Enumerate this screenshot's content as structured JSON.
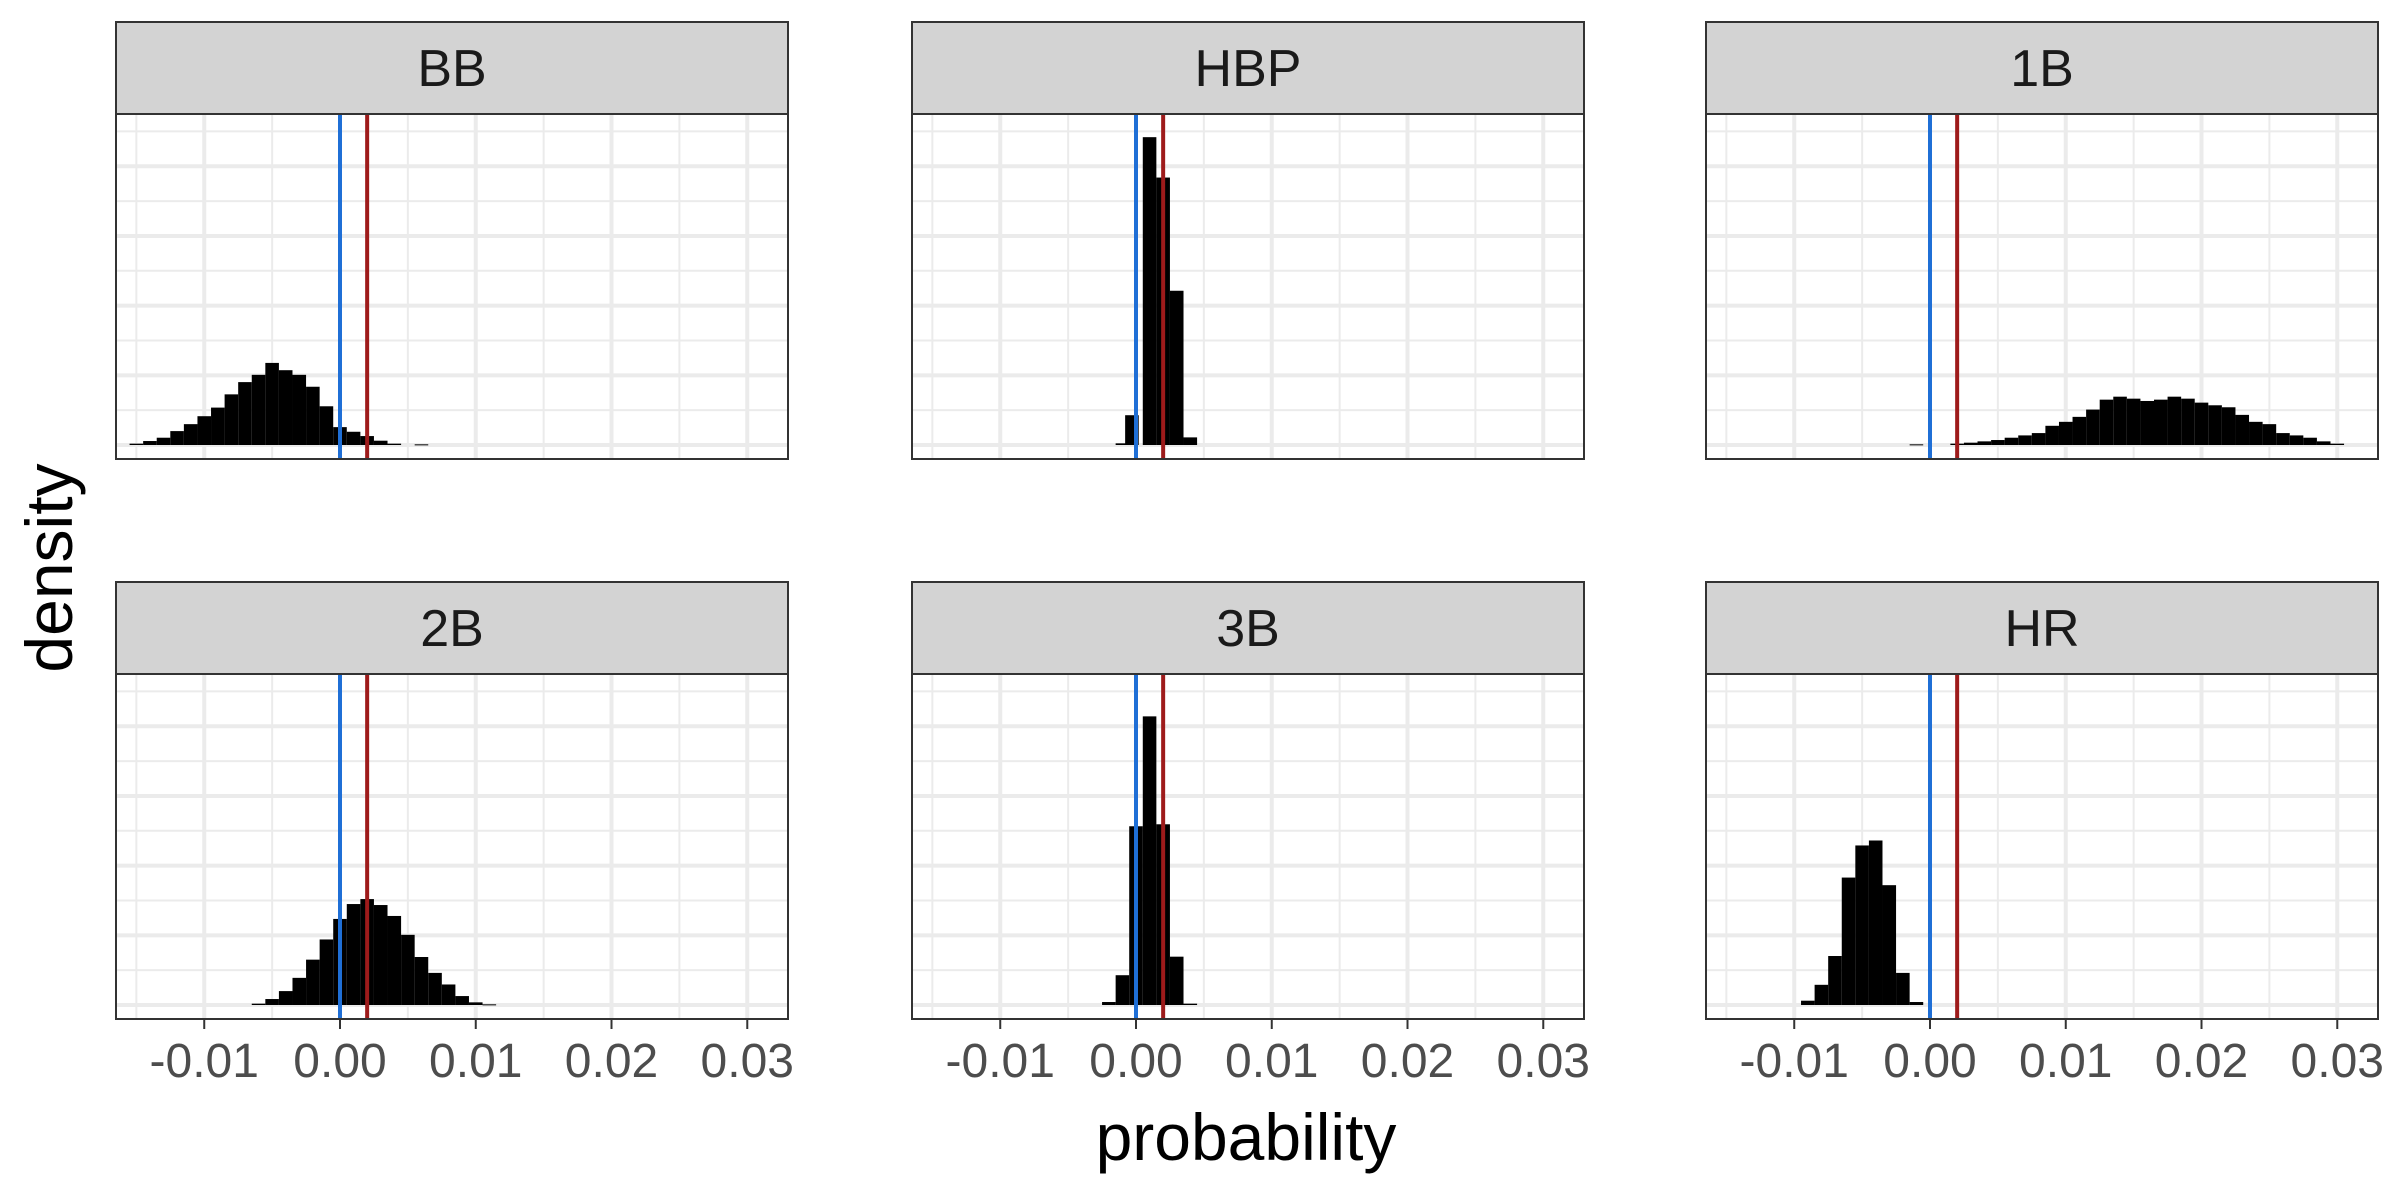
{
  "chart_data": {
    "type": "histogram",
    "xlabel": "probability",
    "ylabel": "density",
    "xlim": [
      -0.0165,
      0.033
    ],
    "x_ticks": [
      -0.01,
      0.0,
      0.01,
      0.02,
      0.03
    ],
    "x_tick_labels": [
      "-0.01",
      "0.00",
      "0.01",
      "0.02",
      "0.03"
    ],
    "y_tick_labels_shown": false,
    "grid": true,
    "panel_background": "#ffffff",
    "strip_background": "#d3d3d3",
    "bar_color": "#000000",
    "bin_width": 0.001,
    "reference_lines": [
      {
        "x": 0.0,
        "color": "#1f6fd6"
      },
      {
        "x": 0.002,
        "color": "#9e1b1b"
      }
    ],
    "facets": [
      {
        "name": "BB",
        "ymax": 1.0,
        "bins": [
          {
            "x": -0.015,
            "y": 0.004
          },
          {
            "x": -0.014,
            "y": 0.012
          },
          {
            "x": -0.013,
            "y": 0.022
          },
          {
            "x": -0.012,
            "y": 0.042
          },
          {
            "x": -0.011,
            "y": 0.063
          },
          {
            "x": -0.01,
            "y": 0.087
          },
          {
            "x": -0.009,
            "y": 0.113
          },
          {
            "x": -0.008,
            "y": 0.153
          },
          {
            "x": -0.007,
            "y": 0.19
          },
          {
            "x": -0.006,
            "y": 0.212
          },
          {
            "x": -0.005,
            "y": 0.248
          },
          {
            "x": -0.004,
            "y": 0.226
          },
          {
            "x": -0.003,
            "y": 0.212
          },
          {
            "x": -0.002,
            "y": 0.176
          },
          {
            "x": -0.001,
            "y": 0.117
          },
          {
            "x": 0.0,
            "y": 0.054
          },
          {
            "x": 0.001,
            "y": 0.04
          },
          {
            "x": 0.002,
            "y": 0.027
          },
          {
            "x": 0.003,
            "y": 0.013
          },
          {
            "x": 0.004,
            "y": 0.004
          },
          {
            "x": 0.006,
            "y": 0.002
          }
        ]
      },
      {
        "name": "HBP",
        "ymax": 1.0,
        "bins": [
          {
            "x": -0.001,
            "y": 0.005
          },
          {
            "x": -0.0003,
            "y": 0.09
          },
          {
            "x": 0.001,
            "y": 0.93
          },
          {
            "x": 0.002,
            "y": 0.808
          },
          {
            "x": 0.003,
            "y": 0.466
          },
          {
            "x": 0.004,
            "y": 0.023
          }
        ]
      },
      {
        "name": "1B",
        "ymax": 1.0,
        "bins": [
          {
            "x": -0.001,
            "y": 0.002
          },
          {
            "x": 0.002,
            "y": 0.004
          },
          {
            "x": 0.003,
            "y": 0.007
          },
          {
            "x": 0.004,
            "y": 0.011
          },
          {
            "x": 0.005,
            "y": 0.015
          },
          {
            "x": 0.006,
            "y": 0.022
          },
          {
            "x": 0.007,
            "y": 0.029
          },
          {
            "x": 0.008,
            "y": 0.036
          },
          {
            "x": 0.009,
            "y": 0.058
          },
          {
            "x": 0.01,
            "y": 0.07
          },
          {
            "x": 0.011,
            "y": 0.085
          },
          {
            "x": 0.012,
            "y": 0.107
          },
          {
            "x": 0.013,
            "y": 0.137
          },
          {
            "x": 0.014,
            "y": 0.146
          },
          {
            "x": 0.015,
            "y": 0.14
          },
          {
            "x": 0.016,
            "y": 0.133
          },
          {
            "x": 0.017,
            "y": 0.137
          },
          {
            "x": 0.018,
            "y": 0.146
          },
          {
            "x": 0.019,
            "y": 0.14
          },
          {
            "x": 0.02,
            "y": 0.128
          },
          {
            "x": 0.021,
            "y": 0.12
          },
          {
            "x": 0.022,
            "y": 0.114
          },
          {
            "x": 0.023,
            "y": 0.091
          },
          {
            "x": 0.024,
            "y": 0.07
          },
          {
            "x": 0.025,
            "y": 0.063
          },
          {
            "x": 0.026,
            "y": 0.036
          },
          {
            "x": 0.027,
            "y": 0.029
          },
          {
            "x": 0.028,
            "y": 0.022
          },
          {
            "x": 0.029,
            "y": 0.011
          },
          {
            "x": 0.03,
            "y": 0.004
          }
        ]
      },
      {
        "name": "2B",
        "ymax": 1.0,
        "bins": [
          {
            "x": -0.006,
            "y": 0.004
          },
          {
            "x": -0.005,
            "y": 0.018
          },
          {
            "x": -0.004,
            "y": 0.042
          },
          {
            "x": -0.003,
            "y": 0.082
          },
          {
            "x": -0.002,
            "y": 0.137
          },
          {
            "x": -0.001,
            "y": 0.198
          },
          {
            "x": 0.0,
            "y": 0.26
          },
          {
            "x": 0.001,
            "y": 0.305
          },
          {
            "x": 0.002,
            "y": 0.32
          },
          {
            "x": 0.003,
            "y": 0.302
          },
          {
            "x": 0.004,
            "y": 0.269
          },
          {
            "x": 0.005,
            "y": 0.212
          },
          {
            "x": 0.006,
            "y": 0.145
          },
          {
            "x": 0.007,
            "y": 0.097
          },
          {
            "x": 0.008,
            "y": 0.062
          },
          {
            "x": 0.009,
            "y": 0.027
          },
          {
            "x": 0.01,
            "y": 0.008
          },
          {
            "x": 0.011,
            "y": 0.002
          }
        ]
      },
      {
        "name": "3B",
        "ymax": 1.0,
        "bins": [
          {
            "x": -0.002,
            "y": 0.009
          },
          {
            "x": -0.001,
            "y": 0.09
          },
          {
            "x": 0.0,
            "y": 0.54
          },
          {
            "x": 0.001,
            "y": 0.872
          },
          {
            "x": 0.002,
            "y": 0.546
          },
          {
            "x": 0.003,
            "y": 0.146
          },
          {
            "x": 0.004,
            "y": 0.004
          }
        ]
      },
      {
        "name": "HR",
        "ymax": 1.0,
        "bins": [
          {
            "x": -0.009,
            "y": 0.013
          },
          {
            "x": -0.008,
            "y": 0.061
          },
          {
            "x": -0.007,
            "y": 0.148
          },
          {
            "x": -0.006,
            "y": 0.385
          },
          {
            "x": -0.005,
            "y": 0.482
          },
          {
            "x": -0.004,
            "y": 0.497
          },
          {
            "x": -0.003,
            "y": 0.362
          },
          {
            "x": -0.002,
            "y": 0.097
          },
          {
            "x": -0.001,
            "y": 0.009
          }
        ]
      }
    ]
  }
}
